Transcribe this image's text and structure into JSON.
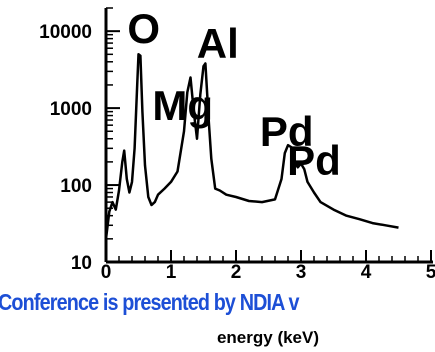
{
  "chart_data": {
    "type": "line",
    "title": "",
    "xlabel": "energy (keV)",
    "ylabel": "",
    "xlim": [
      0,
      5
    ],
    "ylim": [
      10,
      20000
    ],
    "yscale": "log",
    "grid": false,
    "x_ticks": [
      0,
      1,
      2,
      3,
      4,
      5
    ],
    "x_tick_labels": [
      "0",
      "1",
      "2",
      "3",
      "4",
      "5"
    ],
    "y_ticks": [
      10,
      100,
      1000,
      10000
    ],
    "y_tick_labels": [
      "10",
      "100",
      "1000",
      "10000"
    ],
    "series": [
      {
        "color": "#000000",
        "x": [
          0.0,
          0.05,
          0.1,
          0.15,
          0.2,
          0.25,
          0.28,
          0.32,
          0.36,
          0.4,
          0.44,
          0.48,
          0.5,
          0.53,
          0.56,
          0.6,
          0.65,
          0.7,
          0.75,
          0.8,
          0.9,
          1.0,
          1.1,
          1.2,
          1.25,
          1.3,
          1.35,
          1.4,
          1.45,
          1.5,
          1.53,
          1.58,
          1.62,
          1.68,
          1.75,
          1.85,
          2.0,
          2.2,
          2.4,
          2.6,
          2.7,
          2.75,
          2.8,
          2.85,
          2.9,
          2.95,
          3.0,
          3.05,
          3.1,
          3.2,
          3.3,
          3.5,
          3.7,
          3.9,
          4.1,
          4.3,
          4.5
        ],
        "y": [
          20,
          45,
          60,
          48,
          85,
          200,
          280,
          120,
          80,
          110,
          300,
          2000,
          5000,
          4800,
          900,
          180,
          70,
          55,
          60,
          75,
          90,
          110,
          150,
          500,
          1600,
          2500,
          900,
          400,
          1500,
          3500,
          3800,
          700,
          220,
          90,
          85,
          75,
          70,
          62,
          60,
          65,
          120,
          260,
          330,
          310,
          200,
          170,
          190,
          160,
          110,
          80,
          60,
          48,
          40,
          36,
          32,
          30,
          28
        ]
      }
    ],
    "annotations": [
      {
        "text": "O",
        "x": 0.58,
        "y": 7000
      },
      {
        "text": "Al",
        "x": 1.72,
        "y": 4500
      },
      {
        "text": "Mg",
        "x": 1.18,
        "y": 700
      },
      {
        "text": "Pd",
        "x": 2.78,
        "y": 320
      },
      {
        "text": "Pd",
        "x": 3.2,
        "y": 135
      }
    ]
  },
  "banner": "Conference is presented by NDIA v"
}
